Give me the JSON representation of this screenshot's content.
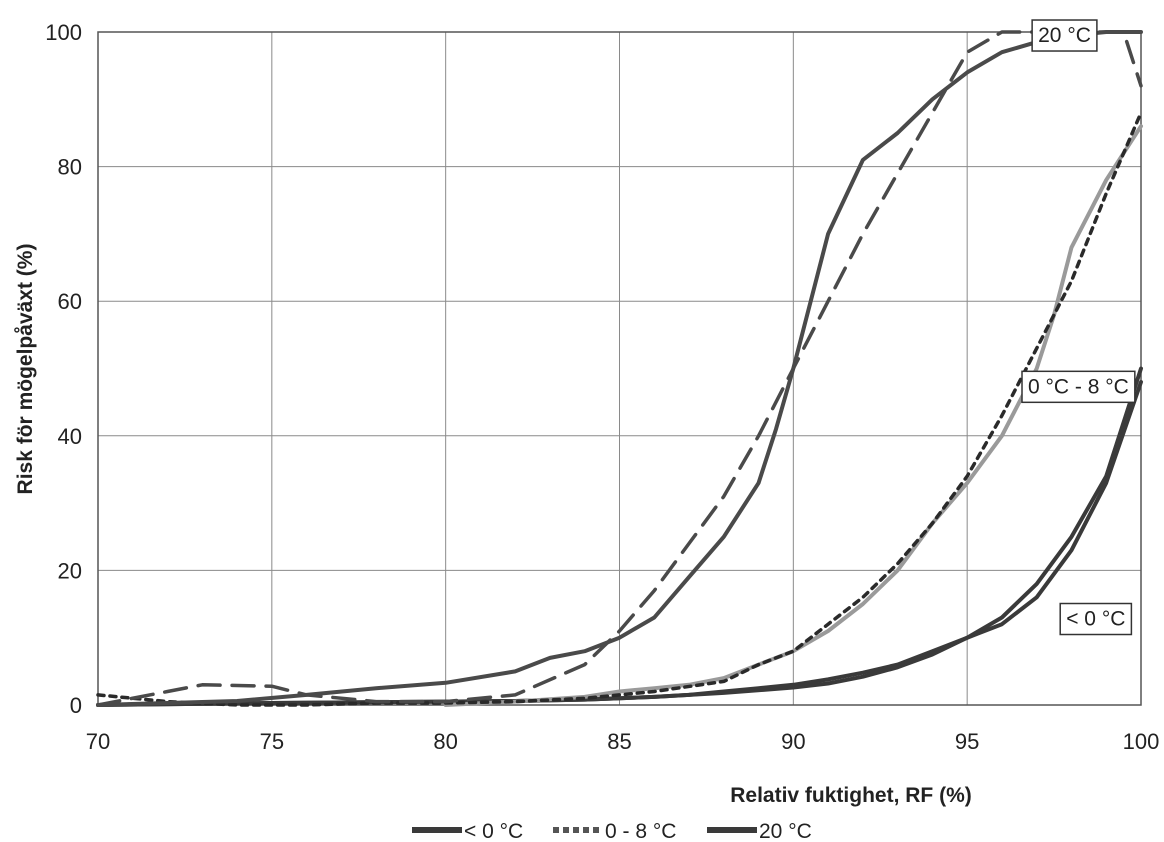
{
  "chart_data": {
    "type": "line",
    "title": "",
    "xlabel": "Relativ fuktighet, RF (%)",
    "ylabel": "Risk för mögelpåväxt (%)",
    "xlim": [
      70,
      100
    ],
    "ylim": [
      0,
      100
    ],
    "xticks": [
      70,
      75,
      80,
      85,
      90,
      95,
      100
    ],
    "yticks": [
      0,
      20,
      40,
      60,
      80,
      100
    ],
    "grid": true,
    "legend_position": "bottom",
    "legend": [
      "< 0 °C",
      "0 - 8 °C",
      "20 °C"
    ],
    "annotations": [
      {
        "text": "20 °C",
        "x": 97.8,
        "y": 99.7
      },
      {
        "text": "0 °C - 8 °C",
        "x": 98.2,
        "y": 47.5
      },
      {
        "text": "< 0 °C",
        "x": 98.7,
        "y": 13
      }
    ],
    "series": [
      {
        "name": "< 0 °C",
        "color": "#3a3a3a",
        "style": "solid",
        "x": [
          70,
          75,
          80,
          82,
          84,
          86,
          87,
          88,
          89,
          90,
          91,
          92,
          93,
          94,
          95,
          96,
          97,
          98,
          99,
          100
        ],
        "y": [
          0,
          0.3,
          0.5,
          0.6,
          0.8,
          1.2,
          1.5,
          2,
          2.5,
          3,
          3.8,
          4.8,
          6,
          8,
          10,
          13,
          18,
          25,
          34,
          50
        ]
      },
      {
        "name": "< 0 °C",
        "color": "#3a3a3a",
        "style": "solid",
        "x": [
          70,
          75,
          80,
          82,
          84,
          86,
          88,
          90,
          91,
          92,
          93,
          94,
          95,
          96,
          97,
          98,
          99,
          100
        ],
        "y": [
          0,
          0.3,
          0.5,
          0.6,
          0.8,
          1.2,
          1.8,
          2.6,
          3.2,
          4.2,
          5.6,
          7.5,
          10,
          12,
          16,
          23,
          33,
          48
        ]
      },
      {
        "name": "0 - 8 °C",
        "color": "#9a9a9a",
        "style": "solid",
        "x": [
          80,
          82,
          84,
          85,
          86,
          87,
          88,
          89,
          90,
          91,
          92,
          93,
          94,
          95,
          96,
          97,
          97.5,
          98,
          99,
          100
        ],
        "y": [
          0,
          0.5,
          1.2,
          2,
          2.5,
          3,
          4,
          6,
          8,
          11,
          15,
          20,
          27,
          33,
          40,
          50,
          58,
          68,
          78,
          86
        ]
      },
      {
        "name": "0 - 8 °C",
        "color": "#2a2a2a",
        "style": "dotted",
        "x": [
          70,
          72,
          74,
          76,
          78,
          80,
          82,
          84,
          86,
          88,
          89,
          90,
          91,
          92,
          93,
          94,
          95,
          96,
          97,
          98,
          99,
          100
        ],
        "y": [
          1.5,
          0.5,
          0,
          0,
          0.3,
          0.3,
          0.5,
          1,
          2,
          3.5,
          6,
          8,
          12,
          16,
          21,
          27,
          34,
          43,
          53,
          63,
          76,
          88
        ]
      },
      {
        "name": "20 °C",
        "color": "#4a4a4a",
        "style": "solid",
        "x": [
          70,
          72,
          74,
          76,
          78,
          80,
          82,
          83,
          84,
          85,
          86,
          87,
          88,
          89,
          89.5,
          90,
          90.5,
          91,
          92,
          93,
          94,
          95,
          96,
          97,
          98,
          99,
          100
        ],
        "y": [
          0,
          0.3,
          0.6,
          1.5,
          2.5,
          3.3,
          5,
          7,
          8,
          10,
          13,
          19,
          25,
          33,
          41,
          50,
          60,
          70,
          81,
          85,
          90,
          94,
          97,
          98.5,
          99.5,
          100,
          100
        ]
      },
      {
        "name": "20 °C",
        "color": "#4a4a4a",
        "style": "dashed",
        "x": [
          70,
          72,
          73,
          75,
          76,
          78,
          80,
          82,
          84,
          85,
          86,
          87,
          88,
          89,
          90,
          91,
          92,
          93,
          94,
          95,
          96,
          97,
          98,
          99,
          99.5,
          100
        ],
        "y": [
          0,
          2,
          3,
          2.8,
          1.5,
          0.5,
          0.5,
          1.5,
          6,
          11,
          17,
          24,
          31,
          40,
          50,
          60,
          70,
          79,
          88,
          97,
          100,
          100,
          100,
          100,
          100,
          92
        ]
      }
    ]
  }
}
